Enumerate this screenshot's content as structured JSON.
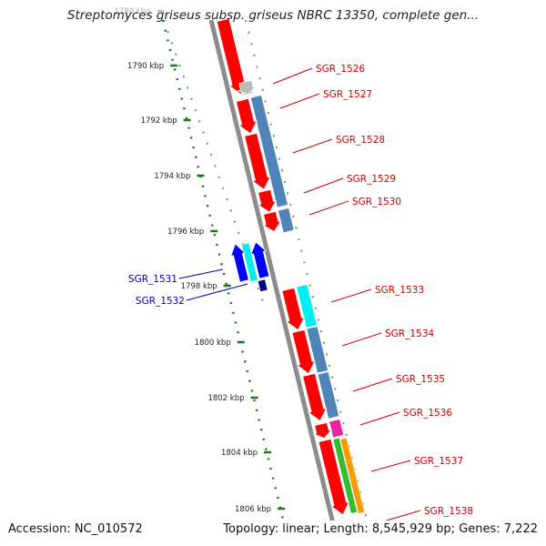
{
  "header": {
    "title": "Streptomyces griseus subsp. griseus NBRC 13350, complete gen..."
  },
  "footer": {
    "accession": "Accession: NC_010572",
    "summary": "Topology: linear; Length: 8,545,929 bp; Genes: 7,222"
  },
  "colors": {
    "forward_label": "#cc0000",
    "reverse_label": "#0000aa",
    "backbone": "#8c8c8c",
    "ruler": "#1a7a1a"
  },
  "ruler": {
    "ticks": [
      {
        "label": "1788 kbp",
        "faded": true
      },
      {
        "label": "1790 kbp"
      },
      {
        "label": "1792 kbp"
      },
      {
        "label": "1794 kbp"
      },
      {
        "label": "1796 kbp"
      },
      {
        "label": "1798 kbp"
      },
      {
        "label": "1800 kbp"
      },
      {
        "label": "1802 kbp"
      },
      {
        "label": "1804 kbp"
      },
      {
        "label": "1806 kbp"
      }
    ]
  },
  "genes": [
    {
      "label": "",
      "strand": "+",
      "color": "#ff0000"
    },
    {
      "label": "SGR_1526",
      "strand": "+",
      "color": "#bbbbbb"
    },
    {
      "label": "SGR_1527",
      "strand": "+",
      "color": "#ff0000"
    },
    {
      "label": "SGR_1528",
      "strand": "+",
      "color": "#ff0000"
    },
    {
      "label": "SGR_1529",
      "strand": "+",
      "color": "#ff0000"
    },
    {
      "label": "SGR_1530",
      "strand": "+",
      "color": "#ff0000"
    },
    {
      "label": "SGR_1531",
      "strand": "-",
      "color": "#0000ff"
    },
    {
      "label": "SGR_1532",
      "strand": "-",
      "color": "#0000ff"
    },
    {
      "label": "SGR_1533",
      "strand": "+",
      "color": "#ff0000"
    },
    {
      "label": "SGR_1534",
      "strand": "+",
      "color": "#ff0000"
    },
    {
      "label": "SGR_1535",
      "strand": "+",
      "color": "#ff0000"
    },
    {
      "label": "SGR_1536",
      "strand": "+",
      "color": "#ff0000"
    },
    {
      "label": "SGR_1537",
      "strand": "+",
      "color": "#ff0000"
    },
    {
      "label": "SGR_1538",
      "strand": "+",
      "color": "#ff0000"
    }
  ],
  "features": [
    {
      "color": "#bbbbbb"
    },
    {
      "color": "#4f84b8"
    },
    {
      "color": "#4f84b8"
    },
    {
      "color": "#00eeee"
    },
    {
      "color": "#4f84b8"
    },
    {
      "color": "#4f84b8"
    },
    {
      "color": "#ee2299"
    },
    {
      "color": "#33bb33"
    },
    {
      "color": "#ff9900"
    },
    {
      "color": "#00eeee"
    },
    {
      "color": "#000088"
    }
  ]
}
